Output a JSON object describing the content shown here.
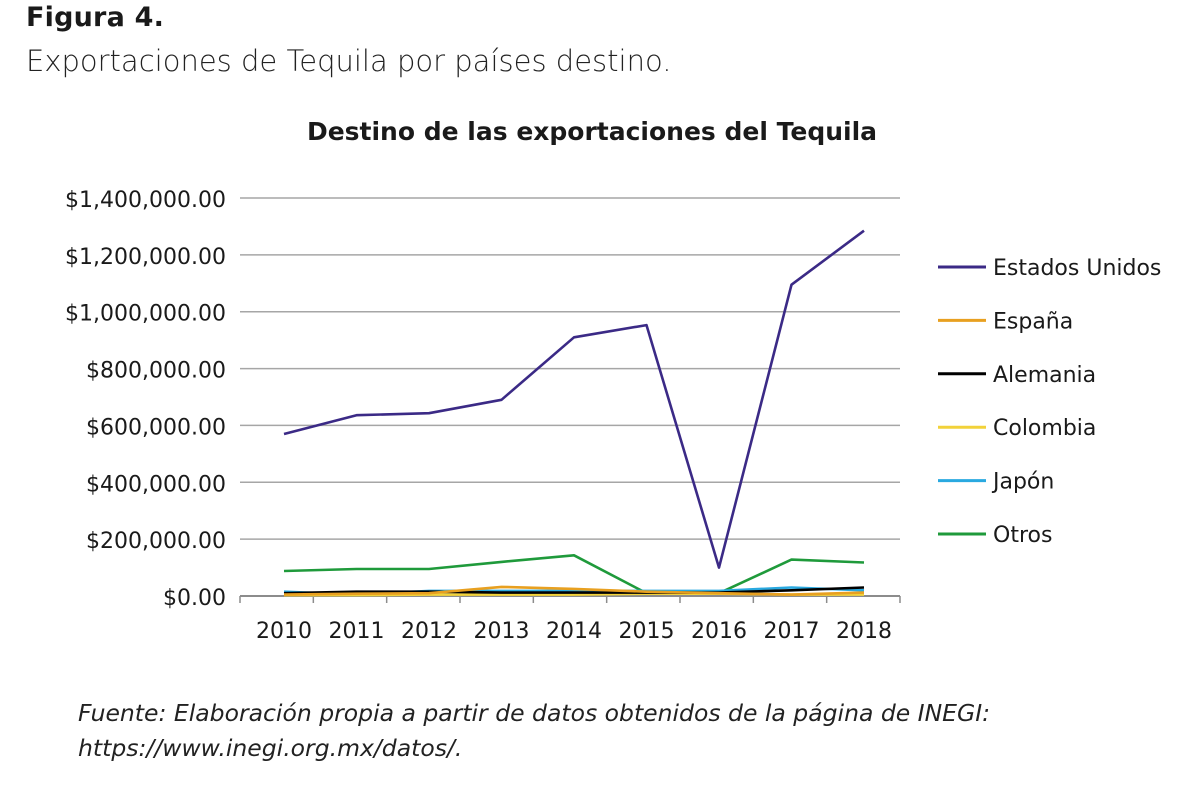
{
  "figure": {
    "label": "Figura 4.",
    "caption": "Exportaciones de Tequila por países destino.",
    "source": "Fuente: Elaboración propia a partir de datos obtenidos de la página de INEGI: https://www.inegi.org.mx/datos/."
  },
  "chart_data": {
    "type": "line",
    "title": "Destino de las exportaciones del Tequila",
    "xlabel": "",
    "ylabel": "",
    "categories": [
      "2010",
      "2011",
      "2012",
      "2013",
      "2014",
      "2015",
      "2016",
      "2017",
      "2018"
    ],
    "ylim": [
      0,
      1400000
    ],
    "yticks": [
      0,
      200000,
      400000,
      600000,
      800000,
      1000000,
      1200000,
      1400000
    ],
    "ytick_labels": [
      "$0.00",
      "$200,000.00",
      "$400,000.00",
      "$600,000.00",
      "$800,000.00",
      "$1,000,000.00",
      "$1,200,000.00",
      "$1,400,000.00"
    ],
    "grid": true,
    "legend_position": "right",
    "series": [
      {
        "name": "Estados Unidos",
        "color": "#3b2a86",
        "values": [
          570000,
          636000,
          643000,
          690000,
          910000,
          953000,
          100000,
          1095000,
          1285000
        ]
      },
      {
        "name": "España",
        "color": "#e8a020",
        "values": [
          5000,
          8000,
          10000,
          32000,
          25000,
          15000,
          10000,
          5000,
          12000
        ]
      },
      {
        "name": "Alemania",
        "color": "#000000",
        "values": [
          10000,
          15000,
          15000,
          12000,
          12000,
          12000,
          12000,
          20000,
          30000
        ]
      },
      {
        "name": "Colombia",
        "color": "#f2d23a",
        "values": [
          3000,
          3000,
          5000,
          5000,
          5000,
          8000,
          8000,
          5000,
          5000
        ]
      },
      {
        "name": "Japón",
        "color": "#29a9e0",
        "values": [
          15000,
          5000,
          18000,
          18000,
          18000,
          18000,
          18000,
          30000,
          20000
        ]
      },
      {
        "name": "Otros",
        "color": "#1f9a3b",
        "values": [
          88000,
          95000,
          95000,
          120000,
          143000,
          10000,
          10000,
          128000,
          118000
        ]
      }
    ]
  }
}
